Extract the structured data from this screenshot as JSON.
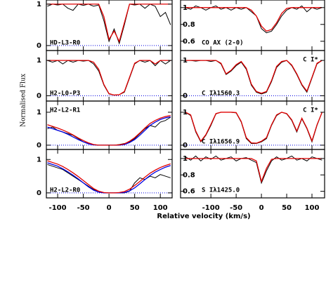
{
  "xlabel": "Relative velocity (km/s)",
  "ylabel": "Normalised Flux",
  "chart_data": [
    {
      "type": "line",
      "label": "HD-L3-R0",
      "label_position": "bottom",
      "x": [
        -120,
        -110,
        -100,
        -90,
        -80,
        -70,
        -60,
        -50,
        -40,
        -30,
        -20,
        -10,
        0,
        10,
        20,
        30,
        40,
        50,
        60,
        70,
        80,
        90,
        100,
        110,
        120
      ],
      "xlim": [
        -122,
        123
      ],
      "xticks": [
        -100,
        -50,
        0,
        50,
        100
      ],
      "ylim": [
        -0.12,
        1.1
      ],
      "yticks": [
        0,
        1
      ],
      "series": [
        {
          "color": "#000000",
          "values": [
            0.95,
            1.0,
            0.98,
            1.0,
            0.9,
            0.85,
            1.0,
            0.97,
            1.0,
            0.95,
            0.98,
            0.6,
            0.1,
            0.4,
            0.05,
            0.5,
            1.0,
            0.98,
            1.0,
            0.9,
            1.0,
            0.95,
            0.7,
            0.8,
            0.5
          ]
        },
        {
          "color": "#e00000",
          "values": [
            1,
            1,
            1,
            1,
            1,
            1,
            1,
            1,
            1,
            1,
            1,
            0.7,
            0.15,
            0.35,
            0.1,
            0.55,
            1,
            1,
            1,
            1,
            1,
            1,
            1,
            1,
            1
          ]
        }
      ]
    },
    {
      "type": "line",
      "label": "H2-L0-P3",
      "label_position": "bottom",
      "x": [
        -120,
        -110,
        -100,
        -90,
        -80,
        -70,
        -60,
        -50,
        -40,
        -30,
        -20,
        -10,
        0,
        10,
        20,
        30,
        40,
        50,
        60,
        70,
        80,
        90,
        100,
        110,
        120
      ],
      "xlim": [
        -122,
        123
      ],
      "xticks": [
        -100,
        -50,
        0,
        50,
        100
      ],
      "ylim": [
        -0.15,
        1.28
      ],
      "yticks": [
        0,
        1
      ],
      "series": [
        {
          "color": "#000000",
          "values": [
            1.0,
            0.95,
            1.0,
            0.9,
            1.0,
            0.95,
            1.0,
            0.98,
            1.0,
            0.9,
            0.7,
            0.3,
            0.05,
            0.02,
            0.03,
            0.1,
            0.5,
            0.9,
            1.0,
            0.95,
            1.0,
            0.85,
            1.0,
            0.9,
            1.0
          ]
        },
        {
          "color": "#e00000",
          "values": [
            1,
            1,
            1,
            1,
            1,
            1,
            1,
            1,
            1,
            0.95,
            0.75,
            0.32,
            0.06,
            0.02,
            0.03,
            0.12,
            0.52,
            0.92,
            1,
            1,
            1,
            0.9,
            1,
            1,
            1
          ]
        }
      ]
    },
    {
      "type": "line",
      "label": "H2-L2-R1",
      "label_position": "top",
      "x": [
        -120,
        -110,
        -100,
        -90,
        -80,
        -70,
        -60,
        -50,
        -40,
        -30,
        -20,
        -10,
        0,
        10,
        20,
        30,
        40,
        50,
        60,
        70,
        80,
        90,
        100,
        110,
        120
      ],
      "xlim": [
        -122,
        123
      ],
      "xticks": [
        -100,
        -50,
        0,
        50,
        100
      ],
      "ylim": [
        -0.13,
        1.34
      ],
      "yticks": [
        0,
        1
      ],
      "series": [
        {
          "color": "#000000",
          "values": [
            0.5,
            0.55,
            0.45,
            0.4,
            0.35,
            0.3,
            0.2,
            0.1,
            0.05,
            0.02,
            0.0,
            0.0,
            0.0,
            0.0,
            0.02,
            0.05,
            0.1,
            0.2,
            0.35,
            0.5,
            0.6,
            0.55,
            0.7,
            0.75,
            0.85
          ]
        },
        {
          "color": "#0000e0",
          "values": [
            0.55,
            0.5,
            0.45,
            0.4,
            0.33,
            0.25,
            0.17,
            0.1,
            0.04,
            0.01,
            0,
            0,
            0,
            0,
            0,
            0.02,
            0.08,
            0.17,
            0.3,
            0.45,
            0.6,
            0.7,
            0.78,
            0.83,
            0.86
          ]
        },
        {
          "color": "#e00000",
          "values": [
            0.62,
            0.57,
            0.52,
            0.46,
            0.39,
            0.31,
            0.22,
            0.14,
            0.07,
            0.02,
            0,
            0,
            0,
            0,
            0.01,
            0.04,
            0.12,
            0.23,
            0.37,
            0.52,
            0.66,
            0.75,
            0.82,
            0.87,
            0.9
          ]
        }
      ]
    },
    {
      "type": "line",
      "label": "H2-L2-R0",
      "label_position": "bottom",
      "x": [
        -120,
        -110,
        -100,
        -90,
        -80,
        -70,
        -60,
        -50,
        -40,
        -30,
        -20,
        -10,
        0,
        10,
        20,
        30,
        40,
        50,
        60,
        70,
        80,
        90,
        100,
        110,
        120
      ],
      "xlim": [
        -122,
        123
      ],
      "xticks": [
        -100,
        -50,
        0,
        50,
        100
      ],
      "ylim": [
        -0.15,
        1.3
      ],
      "yticks": [
        0,
        1
      ],
      "series": [
        {
          "color": "#000000",
          "values": [
            0.85,
            0.8,
            0.75,
            0.7,
            0.6,
            0.5,
            0.4,
            0.3,
            0.2,
            0.1,
            0.05,
            0.0,
            0.0,
            0.0,
            0.0,
            0.0,
            0.05,
            0.3,
            0.45,
            0.4,
            0.5,
            0.45,
            0.55,
            0.5,
            0.45
          ]
        },
        {
          "color": "#0000e0",
          "values": [
            0.9,
            0.85,
            0.8,
            0.72,
            0.63,
            0.53,
            0.42,
            0.3,
            0.18,
            0.08,
            0.02,
            0,
            0,
            0,
            0,
            0.01,
            0.06,
            0.15,
            0.27,
            0.4,
            0.52,
            0.62,
            0.7,
            0.77,
            0.82
          ]
        },
        {
          "color": "#e00000",
          "values": [
            0.96,
            0.91,
            0.86,
            0.79,
            0.7,
            0.6,
            0.49,
            0.37,
            0.25,
            0.13,
            0.05,
            0.01,
            0,
            0,
            0.01,
            0.04,
            0.11,
            0.22,
            0.34,
            0.47,
            0.59,
            0.68,
            0.76,
            0.82,
            0.87
          ]
        }
      ]
    },
    {
      "type": "line",
      "label": "CO AX (2-0)",
      "label_position": "bottom",
      "x": [
        -150,
        -140,
        -130,
        -120,
        -110,
        -100,
        -90,
        -80,
        -70,
        -60,
        -50,
        -40,
        -30,
        -20,
        -10,
        0,
        10,
        20,
        30,
        40,
        50,
        60,
        70,
        80,
        90,
        100,
        110,
        120
      ],
      "xlim": [
        -160,
        125
      ],
      "xticks": [
        -100,
        -50,
        0,
        50,
        100
      ],
      "ylim": [
        0.49,
        1.09
      ],
      "yticks": [
        0.6,
        0.8,
        1
      ],
      "series": [
        {
          "color": "#000000",
          "values": [
            1.0,
            0.98,
            1.02,
            1.0,
            0.97,
            1.0,
            1.02,
            0.98,
            1.0,
            0.97,
            1.0,
            0.98,
            1.0,
            0.95,
            0.9,
            0.75,
            0.7,
            0.72,
            0.8,
            0.9,
            0.97,
            1.0,
            0.98,
            1.02,
            0.95,
            1.0,
            0.98,
            1.0
          ]
        },
        {
          "color": "#e00000",
          "values": [
            1,
            1,
            1,
            1,
            1,
            1,
            1,
            1,
            1,
            1,
            1,
            1,
            1,
            0.97,
            0.9,
            0.78,
            0.72,
            0.74,
            0.82,
            0.93,
            0.99,
            1,
            1,
            1,
            1,
            1,
            1,
            1
          ]
        }
      ]
    },
    {
      "type": "line",
      "label": "C Iλ1560.3",
      "label_position": "bottom",
      "annotation": "C I*",
      "x": [
        -150,
        -140,
        -130,
        -120,
        -110,
        -100,
        -90,
        -80,
        -70,
        -60,
        -50,
        -40,
        -30,
        -20,
        -10,
        0,
        10,
        20,
        30,
        40,
        50,
        60,
        70,
        80,
        90,
        100,
        110,
        120
      ],
      "xlim": [
        -160,
        125
      ],
      "xticks": [
        -100,
        -50,
        0,
        50,
        100
      ],
      "ylim": [
        -0.15,
        1.28
      ],
      "yticks": [
        0,
        1
      ],
      "series": [
        {
          "color": "#000000",
          "values": [
            1,
            1,
            0.98,
            1,
            1,
            0.97,
            1,
            0.9,
            0.6,
            0.7,
            0.85,
            0.95,
            0.75,
            0.3,
            0.1,
            0.05,
            0.1,
            0.4,
            0.8,
            0.95,
            1,
            0.85,
            0.6,
            0.3,
            0.1,
            0.5,
            0.9,
            1
          ]
        },
        {
          "color": "#e00000",
          "values": [
            1,
            1,
            1,
            1,
            1,
            1,
            1,
            0.92,
            0.62,
            0.72,
            0.88,
            0.97,
            0.78,
            0.33,
            0.12,
            0.07,
            0.12,
            0.43,
            0.83,
            0.97,
            1,
            0.87,
            0.62,
            0.32,
            0.13,
            0.52,
            0.92,
            1
          ]
        }
      ]
    },
    {
      "type": "line",
      "label": "C Iλ1656.9",
      "label_position": "bottom",
      "annotation": "C I*",
      "x": [
        -150,
        -140,
        -130,
        -120,
        -110,
        -100,
        -90,
        -80,
        -70,
        -60,
        -50,
        -40,
        -30,
        -20,
        -10,
        0,
        10,
        20,
        30,
        40,
        50,
        60,
        70,
        80,
        90,
        100,
        110,
        120
      ],
      "xlim": [
        -160,
        125
      ],
      "xticks": [
        -100,
        -50,
        0,
        50,
        100
      ],
      "ylim": [
        -0.13,
        1.34
      ],
      "yticks": [
        0,
        1
      ],
      "series": [
        {
          "color": "#000000",
          "values": [
            1,
            0.9,
            0.4,
            0.1,
            0.3,
            0.6,
            0.95,
            1,
            1,
            1,
            0.98,
            0.7,
            0.2,
            0.05,
            0.05,
            0.1,
            0.2,
            0.6,
            0.9,
            1,
            0.95,
            0.75,
            0.4,
            0.8,
            0.5,
            0.1,
            0.6,
            1
          ]
        },
        {
          "color": "#e00000",
          "values": [
            1,
            0.92,
            0.43,
            0.12,
            0.32,
            0.63,
            0.96,
            1,
            1,
            1,
            0.99,
            0.72,
            0.23,
            0.07,
            0.06,
            0.12,
            0.23,
            0.62,
            0.92,
            1,
            0.96,
            0.77,
            0.43,
            0.82,
            0.52,
            0.13,
            0.62,
            1
          ]
        }
      ]
    },
    {
      "type": "line",
      "label": "S Iλ1425.0",
      "label_position": "bottom",
      "x": [
        -150,
        -140,
        -130,
        -120,
        -110,
        -100,
        -90,
        -80,
        -70,
        -60,
        -50,
        -40,
        -30,
        -20,
        -10,
        0,
        10,
        20,
        30,
        40,
        50,
        60,
        70,
        80,
        90,
        100,
        110,
        120
      ],
      "xlim": [
        -160,
        125
      ],
      "xticks": [
        -100,
        -50,
        0,
        50,
        100
      ],
      "ylim": [
        0.52,
        1.11
      ],
      "yticks": [
        0.6,
        0.8,
        1
      ],
      "series": [
        {
          "color": "#000000",
          "values": [
            1.02,
            0.98,
            1.03,
            0.97,
            1.02,
            0.99,
            1.03,
            0.98,
            1.0,
            1.02,
            0.97,
            1.0,
            1.01,
            0.98,
            0.95,
            0.7,
            0.85,
            0.97,
            1.02,
            0.98,
            1.0,
            1.03,
            0.98,
            1.0,
            0.97,
            1.02,
            1.0,
            0.98
          ]
        },
        {
          "color": "#e00000",
          "values": [
            1,
            1,
            1,
            1,
            1,
            1,
            1,
            1,
            1,
            1,
            1,
            1,
            1,
            1,
            0.97,
            0.72,
            0.88,
            0.99,
            1,
            1,
            1,
            1,
            1,
            1,
            1,
            1,
            1,
            1
          ]
        }
      ]
    }
  ]
}
